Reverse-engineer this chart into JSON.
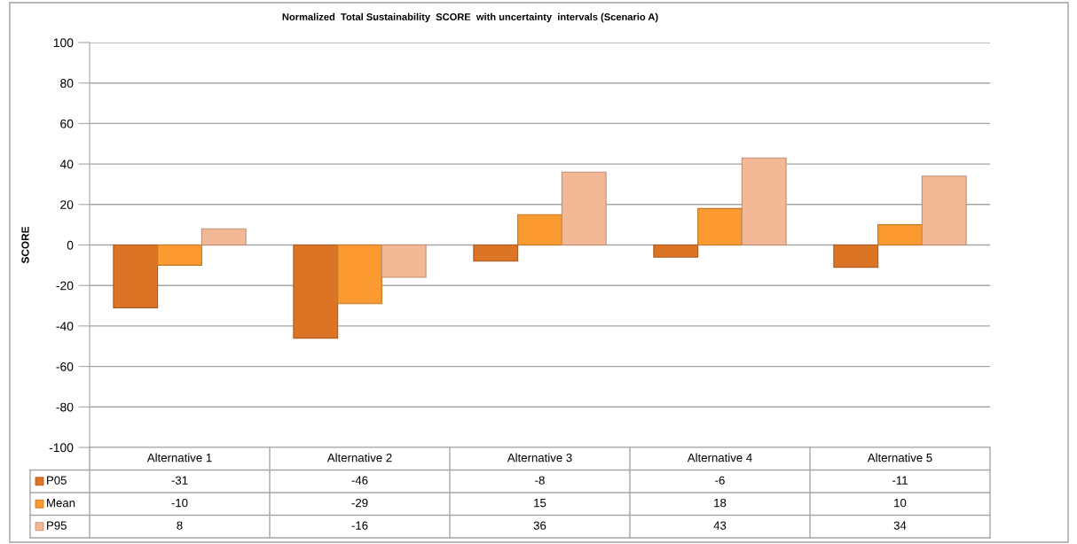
{
  "chart_data": {
    "type": "bar",
    "title": "Normalized  Total Sustainability  SCORE  with uncertainty  intervals (Scenario A)",
    "ylabel": "SCORE",
    "categories": [
      "Alternative 1",
      "Alternative 2",
      "Alternative 3",
      "Alternative 4",
      "Alternative 5"
    ],
    "series": [
      {
        "name": "P05",
        "color": "#dc7426",
        "values": [
          -31,
          -46,
          -8,
          -6,
          -11
        ]
      },
      {
        "name": "Mean",
        "color": "#fb9a30",
        "values": [
          -10,
          -29,
          15,
          18,
          10
        ]
      },
      {
        "name": "P95",
        "color": "#f3b896",
        "values": [
          8,
          -16,
          36,
          43,
          34
        ]
      }
    ],
    "ylim": [
      -100,
      100
    ],
    "yticks": [
      -100,
      -80,
      -60,
      -40,
      -20,
      0,
      20,
      40,
      60,
      80,
      100
    ],
    "grid": "y",
    "legend": "bottom",
    "data_labels": true
  }
}
